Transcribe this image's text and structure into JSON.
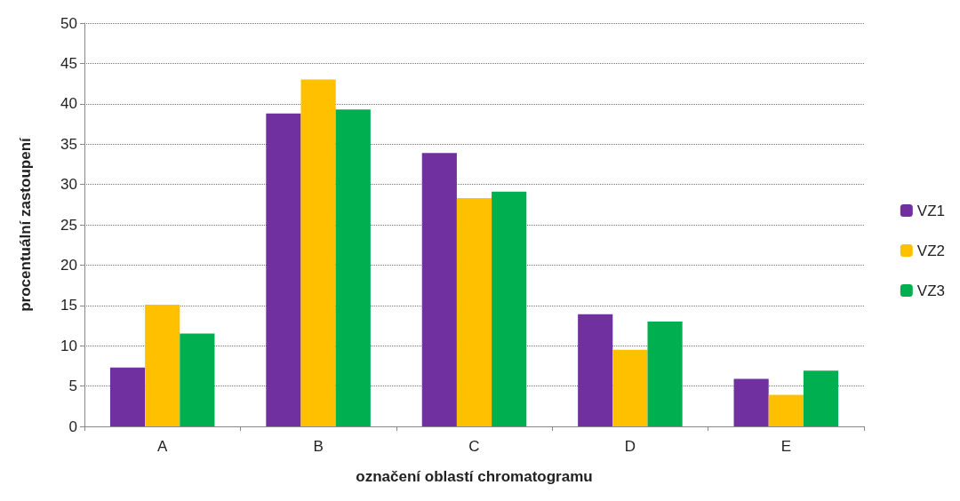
{
  "chart_data": {
    "type": "bar",
    "xlabel": "označení oblastí chromatogramu",
    "ylabel": "procentuální zastoupení",
    "categories": [
      "A",
      "B",
      "C",
      "D",
      "E"
    ],
    "series": [
      {
        "name": "VZ1",
        "color": "#7030a0",
        "values": [
          7.3,
          38.8,
          33.9,
          13.9,
          5.9
        ]
      },
      {
        "name": "VZ2",
        "color": "#ffc000",
        "values": [
          15.1,
          43.0,
          28.3,
          9.5,
          3.9
        ]
      },
      {
        "name": "VZ3",
        "color": "#00b050",
        "values": [
          11.5,
          39.3,
          29.1,
          13.0,
          6.9
        ]
      }
    ],
    "ylim": [
      0,
      50
    ],
    "yticks": [
      0,
      5,
      10,
      15,
      20,
      25,
      30,
      35,
      40,
      45,
      50
    ],
    "grid": "y",
    "legend": "right"
  }
}
